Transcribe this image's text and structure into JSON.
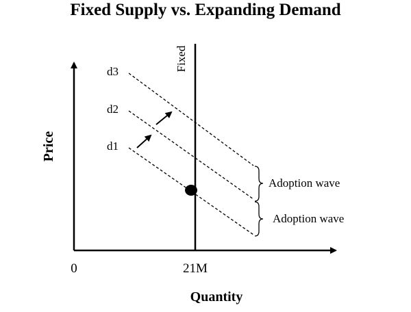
{
  "title": "Fixed Supply vs. Expanding Demand",
  "axes": {
    "x_label": "Quantity",
    "y_label": "Price",
    "origin_label": "0",
    "x_tick_label": "21M"
  },
  "supply": {
    "label": "Fixed"
  },
  "demand_curves": [
    "d1",
    "d2",
    "d3"
  ],
  "brackets": [
    "Adoption wave",
    "Adoption wave"
  ]
}
